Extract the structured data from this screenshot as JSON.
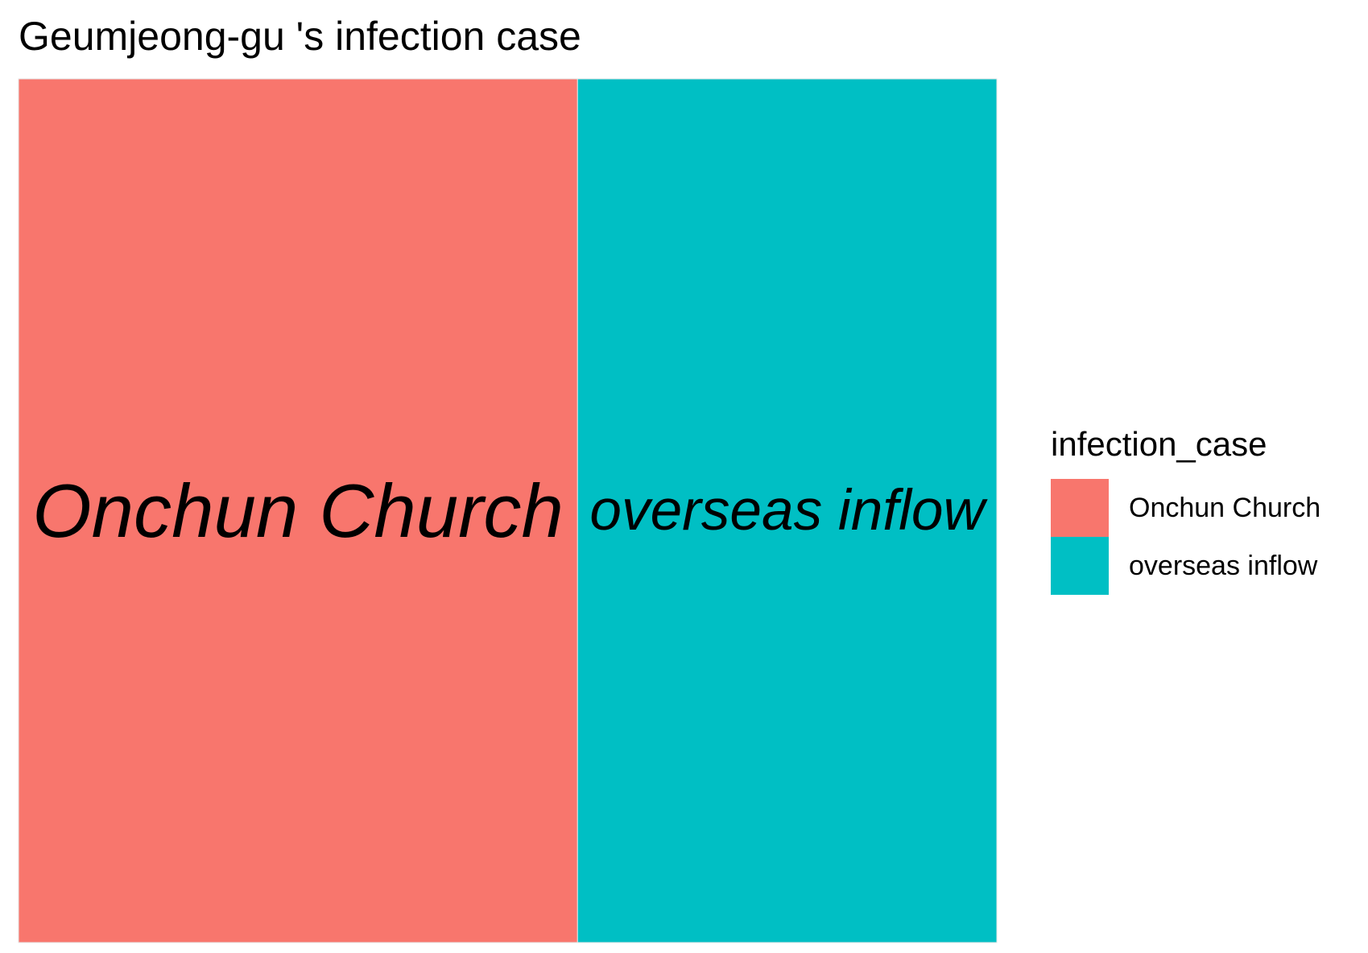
{
  "chart_data": {
    "type": "treemap",
    "title": "Geumjeong-gu 's infection case",
    "legend": {
      "title": "infection_case",
      "placement": "right"
    },
    "tiles": [
      {
        "name": "Onchun Church",
        "label": "Onchun Church",
        "value": 4,
        "color": "#F8766D"
      },
      {
        "name": "overseas inflow",
        "label": "overseas inflow",
        "value": 3,
        "color": "#00BFC4"
      }
    ]
  }
}
